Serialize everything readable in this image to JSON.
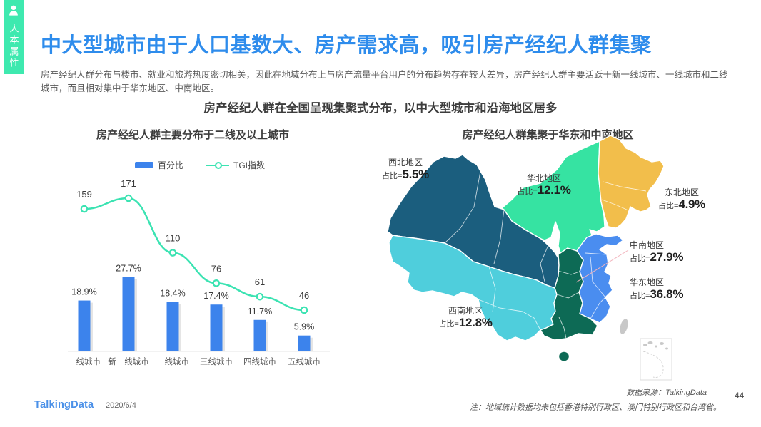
{
  "sidebar": {
    "label": "人本属性"
  },
  "header": {
    "title": "中大型城市由于人口基数大、房产需求高，吸引房产经纪人群集聚",
    "paragraph": "房产经纪人群分布与楼市、就业和旅游热度密切相关，因此在地域分布上与房产流量平台用户的分布趋势存在较大差异，房产经纪人群主要活跃于新一线城市、一线城市和二线城市，而且相对集中于华东地区、中南地区。",
    "subtitle": "房产经纪人群在全国呈现集聚式分布，以中大型城市和沿海地区居多"
  },
  "chart_data": [
    {
      "type": "bar",
      "title": "房产经纪人群主要分布于二线及以上城市",
      "categories": [
        "一线城市",
        "新一线城市",
        "二线城市",
        "三线城市",
        "四线城市",
        "五线城市"
      ],
      "series": [
        {
          "name": "百分比",
          "kind": "bar",
          "values": [
            18.9,
            27.7,
            18.4,
            17.4,
            11.7,
            5.9
          ],
          "unit": "%",
          "color": "#3C83EC"
        },
        {
          "name": "TGI指数",
          "kind": "line",
          "values": [
            159,
            171,
            110,
            76,
            61,
            46
          ],
          "unit": "",
          "color": "#3BE3B2"
        }
      ],
      "xlabel": "",
      "ylabel": "",
      "legend_position": "top",
      "grid": false
    },
    {
      "type": "map",
      "title": "房产经纪人群集聚于华东和中南地区",
      "regions": [
        {
          "id": "northwest",
          "name": "西北地区",
          "share_prefix": "占比=",
          "share_value": "5.5%",
          "value": 5.5,
          "color": "#1B5E7E"
        },
        {
          "id": "north",
          "name": "华北地区",
          "share_prefix": "占比=",
          "share_value": "12.1%",
          "value": 12.1,
          "color": "#36E3A2"
        },
        {
          "id": "northeast",
          "name": "东北地区",
          "share_prefix": "占比=",
          "share_value": "4.9%",
          "value": 4.9,
          "color": "#F2BE4B"
        },
        {
          "id": "central_south",
          "name": "中南地区",
          "share_prefix": "占比=",
          "share_value": "27.9%",
          "value": 27.9,
          "color": "#0D6A55"
        },
        {
          "id": "east",
          "name": "华东地区",
          "share_prefix": "占比=",
          "share_value": "36.8%",
          "value": 36.8,
          "color": "#4A8DF0"
        },
        {
          "id": "southwest",
          "name": "西南地区",
          "share_prefix": "占比=",
          "share_value": "12.8%",
          "value": 12.8,
          "color": "#4FCEDC"
        }
      ],
      "excluded_region_color": "#C8C8C8"
    }
  ],
  "notes": {
    "source": "数据来源：TalkingData",
    "note": "注：地域统计数据均未包括香港特别行政区、澳门特别行政区和台湾省。"
  },
  "footer": {
    "logo": "TalkingData",
    "date": "2020/6/4",
    "page_number": "44"
  },
  "colors": {
    "title_blue": "#2E8CEC",
    "sidebar_mint": "#3EE9AF",
    "bar_blue": "#3C83EC",
    "line_teal": "#3BE3B2"
  }
}
